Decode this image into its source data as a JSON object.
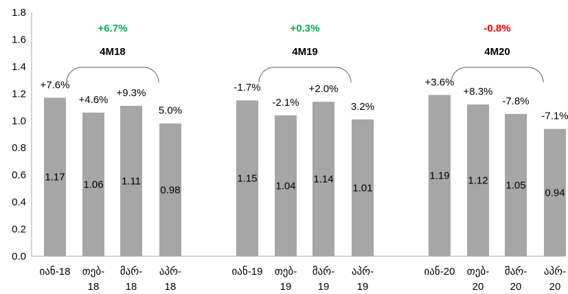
{
  "chart_data": {
    "type": "bar",
    "ylim": [
      0,
      1.8
    ],
    "y_ticks": [
      "0.0",
      "0.2",
      "0.4",
      "0.6",
      "0.8",
      "1.0",
      "1.2",
      "1.4",
      "1.6",
      "1.8"
    ],
    "grid": false,
    "bar_color": "#a6a6a6",
    "groups": [
      {
        "name": "4M18",
        "change": "+6.7%",
        "change_color": "#00b050",
        "bars": [
          {
            "label": [
              "იან-18"
            ],
            "value": 1.17,
            "value_label": "1.17",
            "yoy": "+7.6%"
          },
          {
            "label": [
              "თებ-",
              "18"
            ],
            "value": 1.06,
            "value_label": "1.06",
            "yoy": "+4.6%"
          },
          {
            "label": [
              "მარ-",
              "18"
            ],
            "value": 1.11,
            "value_label": "1.11",
            "yoy": "+9.3%"
          },
          {
            "label": [
              "აპრ-",
              "18"
            ],
            "value": 0.98,
            "value_label": "0.98",
            "yoy": "5.0%"
          }
        ]
      },
      {
        "name": "4M19",
        "change": "+0.3%",
        "change_color": "#00b050",
        "bars": [
          {
            "label": [
              "იან-19"
            ],
            "value": 1.15,
            "value_label": "1.15",
            "yoy": "-1.7%"
          },
          {
            "label": [
              "თებ-",
              "19"
            ],
            "value": 1.04,
            "value_label": "1.04",
            "yoy": "-2.1%"
          },
          {
            "label": [
              "მარ-",
              "19"
            ],
            "value": 1.14,
            "value_label": "1.14",
            "yoy": "+2.0%"
          },
          {
            "label": [
              "აპრ-",
              "19"
            ],
            "value": 1.01,
            "value_label": "1.01",
            "yoy": "3.2%"
          }
        ]
      },
      {
        "name": "4M20",
        "change": "-0.8%",
        "change_color": "#ff0000",
        "bars": [
          {
            "label": [
              "იან-20"
            ],
            "value": 1.19,
            "value_label": "1.19",
            "yoy": "+3.6%"
          },
          {
            "label": [
              "თებ-",
              "20"
            ],
            "value": 1.12,
            "value_label": "1.12",
            "yoy": "+8.3%"
          },
          {
            "label": [
              "მარ-",
              "20"
            ],
            "value": 1.05,
            "value_label": "1.05",
            "yoy": "-7.8%"
          },
          {
            "label": [
              "აპრ-",
              "20"
            ],
            "value": 0.94,
            "value_label": "0.94",
            "yoy": "-7.1%"
          }
        ]
      }
    ]
  }
}
